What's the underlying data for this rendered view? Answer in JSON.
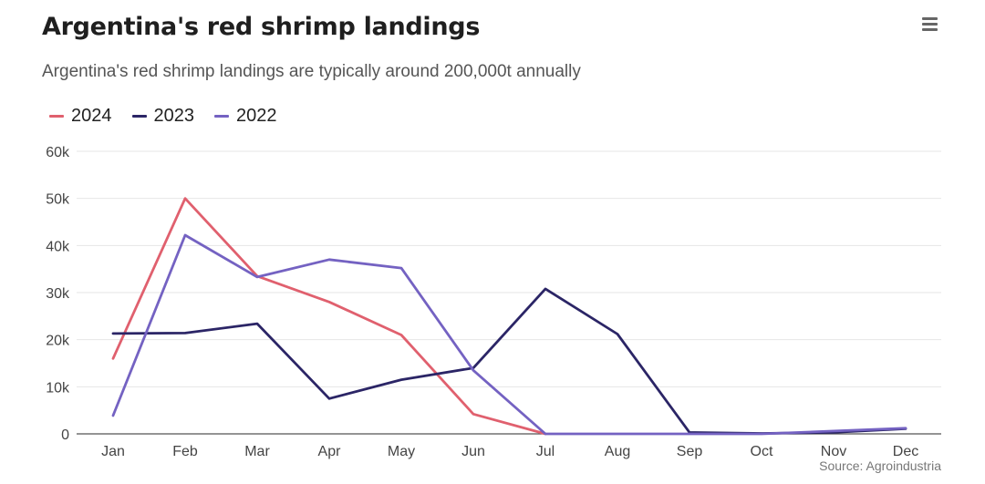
{
  "header": {
    "title": "Argentina's red shrimp landings",
    "subtitle": "Argentina's red shrimp landings are typically around 200,000t annually",
    "menu_icon": "hamburger-menu-icon"
  },
  "footer": {
    "source": "Source: Agroindustria"
  },
  "chart_data": {
    "type": "line",
    "title": "Argentina's red shrimp landings",
    "subtitle": "Argentina's red shrimp landings are typically around 200,000t annually",
    "xlabel": "",
    "ylabel": "",
    "categories": [
      "Jan",
      "Feb",
      "Mar",
      "Apr",
      "May",
      "Jun",
      "Jul",
      "Aug",
      "Sep",
      "Oct",
      "Nov",
      "Dec"
    ],
    "ylim": [
      0,
      60000
    ],
    "yticks": [
      0,
      10000,
      20000,
      30000,
      40000,
      50000,
      60000
    ],
    "ytick_labels": [
      "0",
      "10k",
      "20k",
      "30k",
      "40k",
      "50k",
      "60k"
    ],
    "grid": true,
    "legend_position": "top-left",
    "series": [
      {
        "name": "2024",
        "color": "#e0606e",
        "values": [
          16000,
          50000,
          33500,
          28000,
          21000,
          4200,
          0,
          null,
          null,
          null,
          null,
          null
        ]
      },
      {
        "name": "2023",
        "color": "#2b2566",
        "values": [
          21300,
          21400,
          23400,
          7500,
          11500,
          14000,
          30800,
          21200,
          300,
          100,
          300,
          1100
        ]
      },
      {
        "name": "2022",
        "color": "#7462c2",
        "values": [
          3900,
          42200,
          33300,
          37000,
          35200,
          13500,
          0,
          0,
          0,
          0,
          600,
          1200
        ]
      }
    ]
  }
}
